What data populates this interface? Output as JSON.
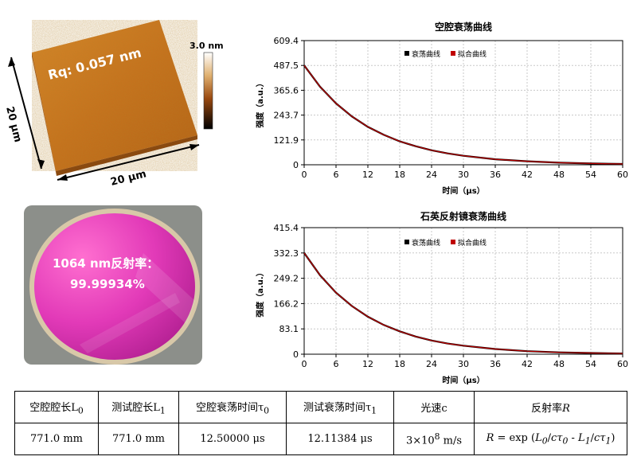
{
  "afm": {
    "rq_label": "Rq: 0.057 nm",
    "scale_max_label": "3.0 nm",
    "x_dim_label": "20 μm",
    "y_dim_label": "20 μm"
  },
  "mirror": {
    "caption_line1": "1064 nm反射率：",
    "caption_line2": "99.99934%"
  },
  "chart_data": [
    {
      "type": "line",
      "title": "空腔衰荡曲线",
      "xlabel": "时间（μs）",
      "ylabel": "强度（a.u.）",
      "xlim": [
        0,
        60
      ],
      "ylim": [
        0,
        609.4
      ],
      "xticks": [
        0,
        6,
        12,
        18,
        24,
        30,
        36,
        42,
        48,
        54,
        60
      ],
      "yticks": [
        0,
        121.9,
        243.7,
        365.6,
        487.5,
        609.4
      ],
      "grid": true,
      "legend_position": "top-right",
      "series": [
        {
          "name": "衰荡曲线",
          "color": "#000000",
          "x": [
            0,
            3,
            6,
            9,
            12,
            15,
            18,
            21,
            24,
            27,
            30,
            36,
            42,
            48,
            54,
            60
          ],
          "values": [
            487.5,
            383,
            301,
            237,
            186,
            147,
            115,
            91,
            71,
            56,
            44,
            27,
            17,
            10,
            6.4,
            4
          ]
        },
        {
          "name": "拟合曲线",
          "color": "#c00000",
          "x": [
            0,
            3,
            6,
            9,
            12,
            15,
            18,
            21,
            24,
            27,
            30,
            36,
            42,
            48,
            54,
            60
          ],
          "values": [
            487.5,
            383,
            301,
            237,
            186,
            147,
            115,
            91,
            71,
            56,
            44,
            27,
            17,
            10,
            6.4,
            4
          ]
        }
      ]
    },
    {
      "type": "line",
      "title": "石英反射镜衰荡曲线",
      "xlabel": "时间（μs）",
      "ylabel": "强度（a.u.）",
      "xlim": [
        0,
        60
      ],
      "ylim": [
        0,
        415.4
      ],
      "xticks": [
        0,
        6,
        12,
        18,
        24,
        30,
        36,
        42,
        48,
        54,
        60
      ],
      "yticks": [
        0,
        83.1,
        166.2,
        249.2,
        332.3,
        415.4
      ],
      "grid": true,
      "legend_position": "top-right",
      "series": [
        {
          "name": "衰荡曲线",
          "color": "#000000",
          "x": [
            0,
            3,
            6,
            9,
            12,
            15,
            18,
            21,
            24,
            27,
            30,
            36,
            42,
            48,
            54,
            60
          ],
          "values": [
            332.3,
            259,
            202,
            158,
            123,
            96,
            75,
            58,
            45,
            35,
            28,
            17,
            10,
            6,
            3.8,
            2.3
          ]
        },
        {
          "name": "拟合曲线",
          "color": "#c00000",
          "x": [
            0,
            3,
            6,
            9,
            12,
            15,
            18,
            21,
            24,
            27,
            30,
            36,
            42,
            48,
            54,
            60
          ],
          "values": [
            332.3,
            259,
            202,
            158,
            123,
            96,
            75,
            58,
            45,
            35,
            28,
            17,
            10,
            6,
            3.8,
            2.3
          ]
        }
      ]
    }
  ],
  "table": {
    "headers": [
      "空腔腔长L0",
      "测试腔长L1",
      "空腔衰荡时间τ0",
      "测试衰荡时间τ1",
      "光速c",
      "反射率R"
    ],
    "row": [
      "771.0 mm",
      "771.0 mm",
      "12.50000 μs",
      "12.11384 μs",
      "3×108 m/s",
      "R = exp (L0/cτ0 - L1/cτ1)"
    ]
  }
}
